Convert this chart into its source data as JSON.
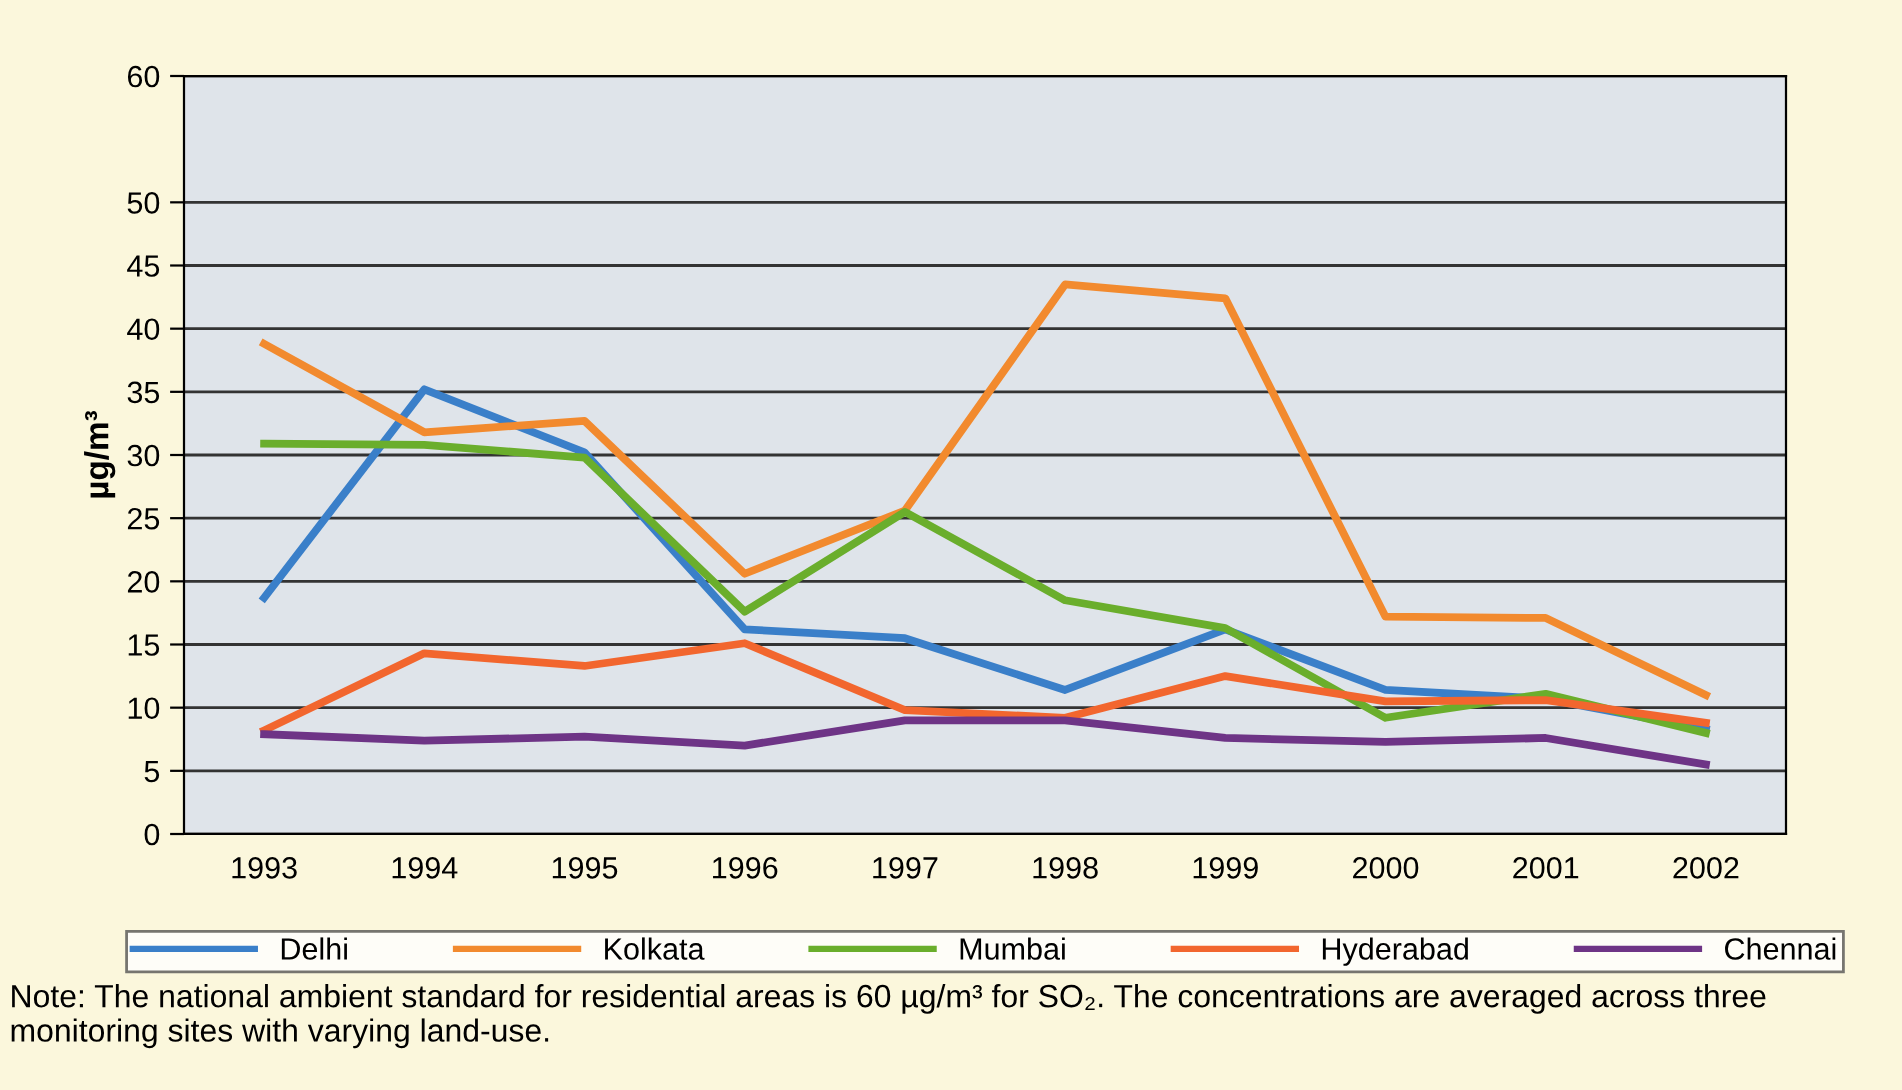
{
  "chart_data": {
    "type": "line",
    "ylabel": "µg/m³",
    "categories": [
      "1993",
      "1994",
      "1995",
      "1996",
      "1997",
      "1998",
      "1999",
      "2000",
      "2001",
      "2002"
    ],
    "series": [
      {
        "name": "Delhi",
        "color": "#3a7fc9",
        "values": [
          18.7,
          35.2,
          30.2,
          16.2,
          15.5,
          11.4,
          16.2,
          11.4,
          10.7,
          8.3
        ]
      },
      {
        "name": "Kolkata",
        "color": "#f28a2e",
        "values": [
          38.8,
          31.8,
          32.7,
          20.6,
          25.6,
          43.5,
          42.4,
          17.2,
          17.1,
          11.0
        ]
      },
      {
        "name": "Mumbai",
        "color": "#6aae2c",
        "values": [
          30.9,
          30.8,
          29.8,
          17.6,
          25.5,
          18.5,
          16.3,
          9.2,
          11.1,
          8.0
        ]
      },
      {
        "name": "Hyderabad",
        "color": "#f2662e",
        "values": [
          8.2,
          14.3,
          13.3,
          15.1,
          9.8,
          9.2,
          12.5,
          10.5,
          10.6,
          8.8
        ]
      },
      {
        "name": "Chennai",
        "color": "#6e3486",
        "values": [
          7.9,
          7.4,
          7.7,
          7.0,
          9.0,
          9.0,
          7.6,
          7.3,
          7.6,
          5.5
        ]
      }
    ],
    "ylim": [
      0,
      60
    ],
    "yticks": [
      0,
      5,
      10,
      15,
      20,
      25,
      30,
      35,
      40,
      45,
      50,
      60
    ],
    "grid": "y",
    "legend": "bottom",
    "line_style": "solid",
    "marker": "none",
    "annotations": [
      "Note: The national ambient standard for residential areas is 60 µg/m³ for SO₂. The concentrations are averaged across three monitoring sites with varying land-use."
    ]
  }
}
